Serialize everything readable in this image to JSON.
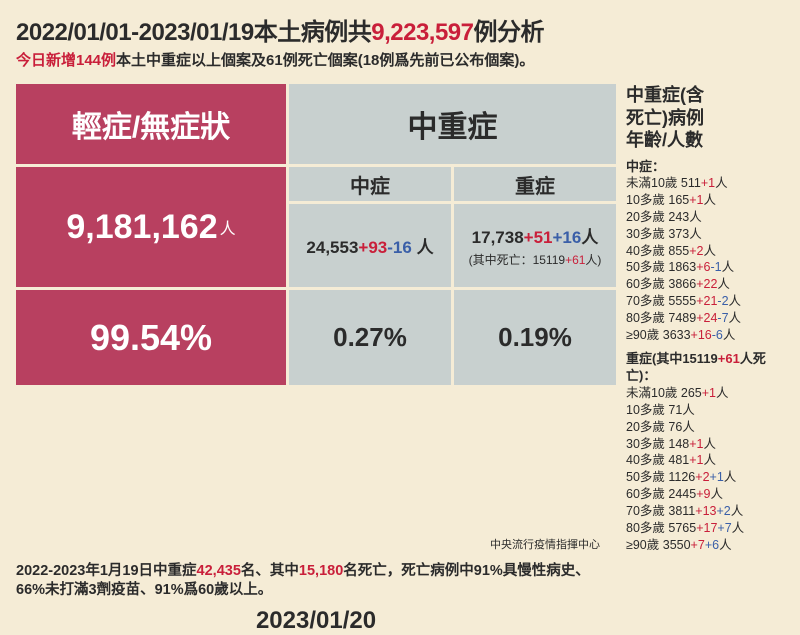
{
  "colors": {
    "background": "#f5ecd6",
    "pink": "#b84060",
    "gray": "#c8d0cf",
    "red": "#c91f3a",
    "blue": "#3a5fa8",
    "text": "#2b2b2b"
  },
  "title": {
    "pre": "2022/01/01-2023/01/19本土病例共",
    "count": "9,223,597",
    "post": "例分析"
  },
  "subtitle": {
    "pre": "今日新增144例",
    "post": "本土中重症以上個案及61例死亡個案(18例爲先前已公布個案)。"
  },
  "table": {
    "mild_header": "輕症/無症狀",
    "severe_header": "中重症",
    "moderate_sub": "中症",
    "severe_sub": "重症",
    "mild_count": "9,181,162",
    "mild_unit": "人",
    "moderate": {
      "base": "24,553",
      "plus": "+93",
      "minus": "-16",
      "unit": " 人"
    },
    "severe": {
      "base": "17,738",
      "plus": "+51",
      "plus2": "+16",
      "unit": "人",
      "death_pre": "(其中死亡：15119",
      "death_plus": "+61",
      "death_post": "人)"
    },
    "mild_pct": "99.54%",
    "moderate_pct": "0.27%",
    "severe_pct": "0.19%"
  },
  "side": {
    "title1": "中重症(含",
    "title2": "死亡)病例",
    "title3": "年齡/人數",
    "moderate_label": "中症：",
    "moderate_rows": [
      {
        "age": "未滿10歲",
        "base": "511",
        "plus": "+1",
        "unit": "人"
      },
      {
        "age": "10多歲",
        "base": "165",
        "plus": "+1",
        "unit": "人"
      },
      {
        "age": "20多歲",
        "base": "243",
        "unit": "人"
      },
      {
        "age": "30多歲",
        "base": "373",
        "unit": "人"
      },
      {
        "age": "40多歲",
        "base": "855",
        "plus": "+2",
        "unit": "人"
      },
      {
        "age": "50多歲",
        "base": "1863",
        "plus": "+6",
        "minus": "-1",
        "unit": "人"
      },
      {
        "age": "60多歲",
        "base": "3866",
        "plus": "+22",
        "unit": "人"
      },
      {
        "age": "70多歲",
        "base": "5555",
        "plus": "+21",
        "minus": "-2",
        "unit": "人"
      },
      {
        "age": "80多歲",
        "base": "7489",
        "plus": "+24",
        "minus": "-7",
        "unit": "人"
      },
      {
        "age": "≥90歲",
        "base": "3633",
        "plus": "+16",
        "minus": "-6",
        "unit": "人"
      }
    ],
    "severe_label_pre": "重症(其中15119",
    "severe_label_plus": "+61",
    "severe_label_post": "人死亡)：",
    "severe_rows": [
      {
        "age": "未滿10歲",
        "base": "265",
        "plus": "+1",
        "unit": "人"
      },
      {
        "age": "10多歲",
        "base": "71",
        "unit": "人"
      },
      {
        "age": "20多歲",
        "base": "76",
        "unit": "人"
      },
      {
        "age": "30多歲",
        "base": "148",
        "plus": "+1",
        "unit": "人"
      },
      {
        "age": "40多歲",
        "base": "481",
        "plus": "+1",
        "unit": "人"
      },
      {
        "age": "50多歲",
        "base": "1126",
        "plus": "+2",
        "plus2": "+1",
        "unit": "人"
      },
      {
        "age": "60多歲",
        "base": "2445",
        "plus": "+9",
        "unit": "人"
      },
      {
        "age": "70多歲",
        "base": "3811",
        "plus": "+13",
        "plus2": "+2",
        "unit": "人"
      },
      {
        "age": "80多歲",
        "base": "5765",
        "plus": "+17",
        "plus2": "+7",
        "unit": "人"
      },
      {
        "age": "≥90歲",
        "base": "3550",
        "plus": "+7",
        "plus2": "+6",
        "unit": "人"
      }
    ]
  },
  "footnote": {
    "p1": "2022-2023年1月19日中重症",
    "n1": "42,435",
    "p2": "名、其中",
    "n2": "15,180",
    "p3": "名死亡，死亡病例中91%具慢性病史、66%未打滿3劑疫苗、91%爲60歲以上。"
  },
  "date": "2023/01/20",
  "source": "中央流行疫情指揮中心"
}
